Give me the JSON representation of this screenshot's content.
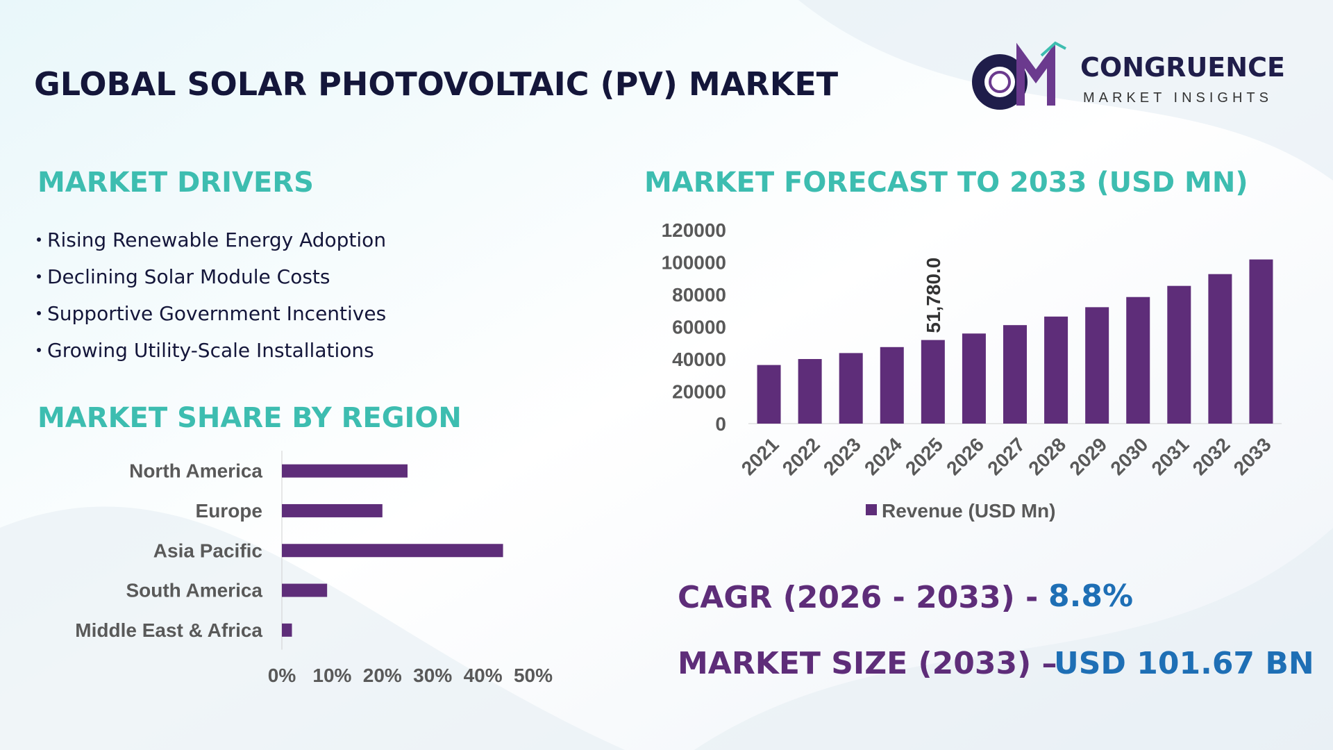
{
  "header": {
    "title": "GLOBAL SOLAR PHOTOVOLTAIC (PV) MARKET"
  },
  "logo": {
    "name": "CONGRUENCE",
    "tagline": "MARKET INSIGHTS"
  },
  "drivers": {
    "title": "MARKET DRIVERS",
    "items": [
      "Rising Renewable Energy Adoption",
      "Declining Solar Module Costs",
      "Supportive Government Incentives",
      "Growing Utility-Scale Installations"
    ]
  },
  "chart_data": [
    {
      "type": "bar",
      "orientation": "vertical",
      "title": "MARKET FORECAST TO 2033 (USD MN)",
      "categories": [
        "2021",
        "2022",
        "2023",
        "2024",
        "2025",
        "2026",
        "2027",
        "2028",
        "2029",
        "2030",
        "2031",
        "2032",
        "2033"
      ],
      "series": [
        {
          "name": "Revenue (USD Mn)",
          "color": "#5e2d79",
          "values": [
            36300,
            40000,
            43700,
            47400,
            51780,
            55800,
            61000,
            66300,
            72100,
            78400,
            85300,
            92600,
            101670
          ],
          "value_labels": [
            null,
            null,
            null,
            null,
            "51,780.0",
            null,
            null,
            null,
            null,
            null,
            null,
            null,
            null
          ]
        }
      ],
      "ylim": [
        0,
        120000
      ],
      "yticks": [
        0,
        20000,
        40000,
        60000,
        80000,
        100000,
        120000
      ],
      "grid": false,
      "legend": "bottom"
    },
    {
      "type": "bar",
      "orientation": "horizontal",
      "title": "MARKET SHARE BY REGION",
      "categories": [
        "North America",
        "Europe",
        "Asia Pacific",
        "South America",
        "Middle East & Africa"
      ],
      "values": [
        25,
        20,
        44,
        9,
        2
      ],
      "color": "#5e2d79",
      "xlim": [
        0,
        50
      ],
      "xticks": [
        {
          "value": 0,
          "label": "0%"
        },
        {
          "value": 10,
          "label": "10%"
        },
        {
          "value": 20,
          "label": "20%"
        },
        {
          "value": 30,
          "label": "30%"
        },
        {
          "value": 40,
          "label": "40%"
        },
        {
          "value": 50,
          "label": "50%"
        }
      ],
      "grid": false
    }
  ],
  "stats": {
    "cagr": {
      "label": "CAGR (2026 - 2033) -",
      "value": "8.8%"
    },
    "market_size": {
      "label": "MARKET SIZE (2033) –",
      "value": "USD 101.67 BN"
    }
  }
}
